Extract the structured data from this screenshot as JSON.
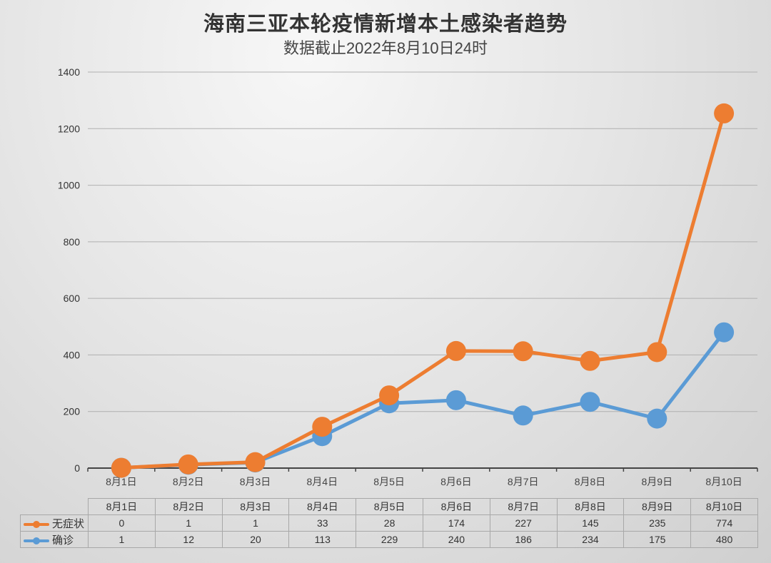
{
  "header": {
    "title": "海南三亚本轮疫情新增本土感染者趋势",
    "subtitle": "数据截止2022年8月10日24时"
  },
  "colors": {
    "asymptomatic": "#ED7D31",
    "confirmed": "#5B9BD5"
  },
  "table": {
    "columns": [
      "8月1日",
      "8月2日",
      "8月3日",
      "8月4日",
      "8月5日",
      "8月6日",
      "8月7日",
      "8月8日",
      "8月9日",
      "8月10日"
    ],
    "rows": [
      {
        "label": "无症状",
        "values": [
          "0",
          "1",
          "1",
          "33",
          "28",
          "174",
          "227",
          "145",
          "235",
          "774"
        ]
      },
      {
        "label": "确诊",
        "values": [
          "1",
          "12",
          "20",
          "113",
          "229",
          "240",
          "186",
          "234",
          "175",
          "480"
        ]
      }
    ]
  },
  "chart_data": {
    "type": "line",
    "stacked": true,
    "title": "海南三亚本轮疫情新增本土感染者趋势",
    "subtitle": "数据截止2022年8月10日24时",
    "xlabel": "",
    "ylabel": "",
    "categories": [
      "8月1日",
      "8月2日",
      "8月3日",
      "8月4日",
      "8月5日",
      "8月6日",
      "8月7日",
      "8月8日",
      "8月9日",
      "8月10日"
    ],
    "series": [
      {
        "name": "无症状",
        "values": [
          0,
          1,
          1,
          33,
          28,
          174,
          227,
          145,
          235,
          774
        ],
        "color": "#ED7D31"
      },
      {
        "name": "确诊",
        "values": [
          1,
          12,
          20,
          113,
          229,
          240,
          186,
          234,
          175,
          480
        ],
        "color": "#5B9BD5"
      }
    ],
    "ylim": [
      0,
      1400
    ],
    "yticks": [
      0,
      200,
      400,
      600,
      800,
      1000,
      1200,
      1400
    ],
    "grid": true,
    "legend_position": "data-table-below"
  }
}
